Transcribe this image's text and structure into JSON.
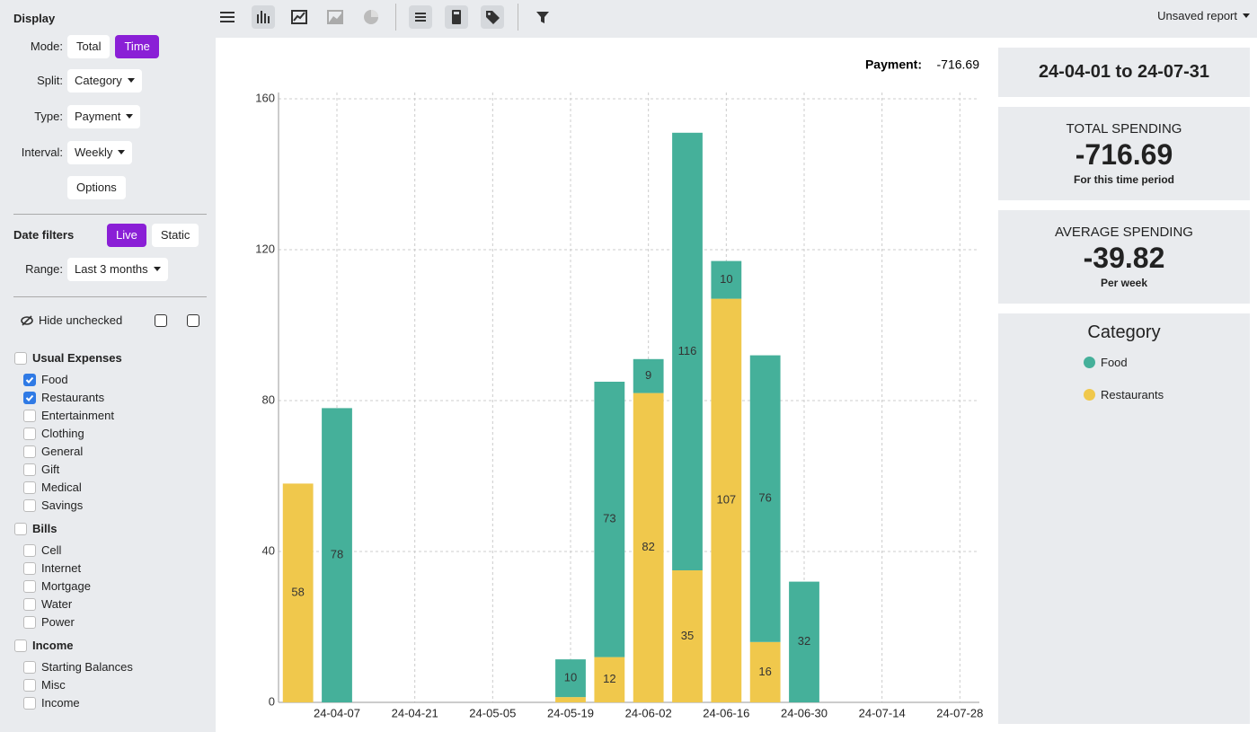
{
  "toolbar": {
    "report": "Unsaved report"
  },
  "sidebar": {
    "display": {
      "title": "Display",
      "mode": {
        "label": "Mode:",
        "options": [
          "Total",
          "Time"
        ],
        "active": 1
      },
      "fields": [
        {
          "label": "Split:",
          "value": "Category"
        },
        {
          "label": "Type:",
          "value": "Payment"
        },
        {
          "label": "Interval:",
          "value": "Weekly"
        }
      ],
      "options_button": "Options"
    },
    "date_filters": {
      "title": "Date filters",
      "options": [
        "Live",
        "Static"
      ],
      "active": 0,
      "range": {
        "label": "Range:",
        "value": "Last 3 months"
      }
    },
    "hide_unchecked": "Hide unchecked",
    "groups": [
      {
        "name": "Usual Expenses",
        "checked": false,
        "items": [
          {
            "label": "Food",
            "checked": true
          },
          {
            "label": "Restaurants",
            "checked": true
          },
          {
            "label": "Entertainment",
            "checked": false
          },
          {
            "label": "Clothing",
            "checked": false
          },
          {
            "label": "General",
            "checked": false
          },
          {
            "label": "Gift",
            "checked": false
          },
          {
            "label": "Medical",
            "checked": false
          },
          {
            "label": "Savings",
            "checked": false
          }
        ]
      },
      {
        "name": "Bills",
        "checked": false,
        "items": [
          {
            "label": "Cell",
            "checked": false
          },
          {
            "label": "Internet",
            "checked": false
          },
          {
            "label": "Mortgage",
            "checked": false
          },
          {
            "label": "Water",
            "checked": false
          },
          {
            "label": "Power",
            "checked": false
          }
        ]
      },
      {
        "name": "Income",
        "checked": false,
        "items": [
          {
            "label": "Starting Balances",
            "checked": false
          },
          {
            "label": "Misc",
            "checked": false
          },
          {
            "label": "Income",
            "checked": false
          }
        ]
      }
    ]
  },
  "summary": {
    "period": "24-04-01 to 24-07-31",
    "total": {
      "title": "TOTAL SPENDING",
      "amount": -716.69,
      "note": "For this time period"
    },
    "average": {
      "title": "AVERAGE SPENDING",
      "amount": -39.82,
      "note": "Per week"
    }
  },
  "chart_data": {
    "type": "stacked_bar",
    "annotation": "Payment:",
    "legend_title": "Category",
    "categories": [
      null,
      "24-04-07",
      null,
      "24-04-21",
      null,
      "24-05-05",
      null,
      "24-05-19",
      null,
      "24-06-02",
      null,
      "24-06-16",
      null,
      "24-06-30",
      null,
      "24-07-14",
      null,
      "24-07-28"
    ],
    "series": [
      {
        "name": "Food",
        "color": "#45b09a",
        "values": [
          null,
          78,
          null,
          null,
          null,
          null,
          null,
          10,
          73,
          9,
          116,
          10,
          76,
          32,
          null,
          null,
          null,
          null
        ]
      },
      {
        "name": "Restaurants",
        "color": "#f0c84c",
        "values": [
          58,
          null,
          null,
          null,
          null,
          null,
          null,
          1.4,
          12,
          82,
          35,
          107,
          16,
          null,
          null,
          null,
          null,
          null
        ]
      }
    ],
    "ylim": [
      0,
      160
    ],
    "yticks": [
      0,
      40,
      80,
      120,
      160
    ],
    "grid": true
  }
}
